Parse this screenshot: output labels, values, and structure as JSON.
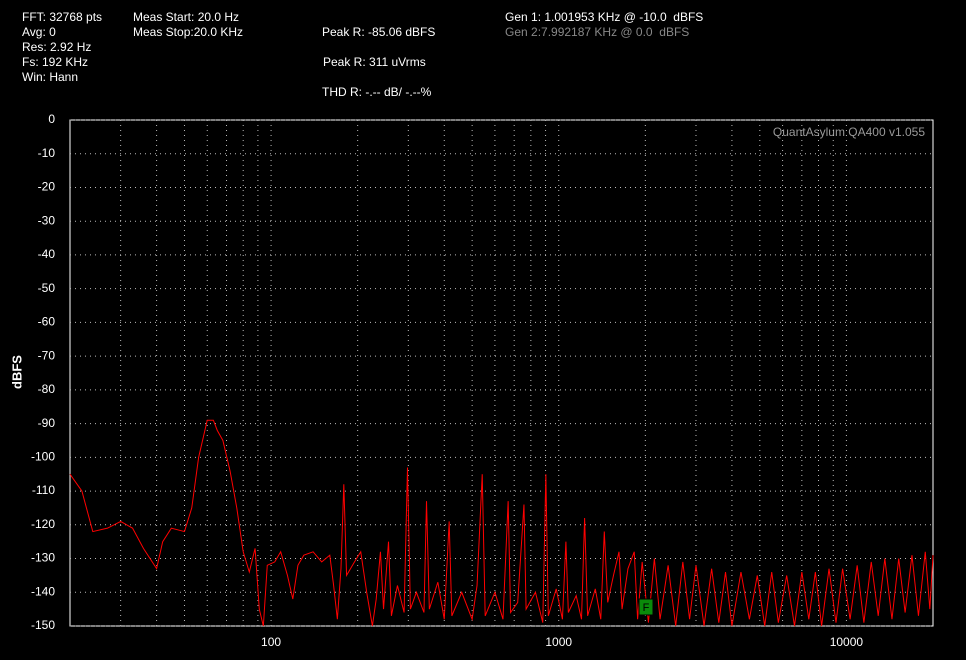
{
  "chart_data": {
    "type": "line",
    "info": {
      "fft": "FFT: 32768 pts",
      "avg": "Avg: 0",
      "res": "Res: 2.92 Hz",
      "fs": "Fs: 192 KHz",
      "win": "Win: Hann",
      "meas_start": "Meas Start: 20.0 Hz",
      "meas_stop": "Meas Stop:20.0 KHz",
      "peak_dbfs": "Peak R: -85.06 dBFS",
      "peak_vrms": "Peak R: 311 uVrms",
      "thd": "THD R: -.-- dB/ -.--%",
      "gen1": "Gen 1: 1.001953 KHz @ -10.0  dBFS",
      "gen2": "Gen 2:7.992187 KHz @ 0.0  dBFS"
    },
    "watermark": "QuantAsylum QA400 v1.055",
    "marker_label": "F",
    "ylabel": "dBFS",
    "log_x": true,
    "grid": true,
    "color": "#ff0000",
    "xlim": [
      20,
      20000
    ],
    "xticks": [
      100,
      1000,
      10000
    ],
    "minor_xticks": [
      30,
      40,
      50,
      60,
      70,
      80,
      90,
      200,
      300,
      400,
      500,
      600,
      700,
      800,
      900,
      2000,
      3000,
      4000,
      5000,
      6000,
      7000,
      8000,
      9000
    ],
    "ylim": [
      -150,
      0
    ],
    "yticks": [
      0,
      -10,
      -20,
      -30,
      -40,
      -50,
      -60,
      -70,
      -80,
      -90,
      -100,
      -110,
      -120,
      -130,
      -140,
      -150
    ],
    "x": [
      20,
      22,
      24,
      27,
      30,
      33,
      36,
      40,
      42,
      45,
      50,
      53,
      56,
      60,
      63,
      65,
      68,
      72,
      76,
      80,
      84,
      88,
      91,
      94,
      97,
      103,
      108,
      114,
      119,
      124,
      130,
      140,
      150,
      160,
      165,
      170,
      175,
      179,
      183,
      195,
      205,
      215,
      225,
      232,
      240,
      246,
      256,
      262,
      275,
      290,
      298,
      305,
      320,
      340,
      347,
      355,
      380,
      400,
      416,
      425,
      460,
      500,
      520,
      542,
      555,
      600,
      640,
      667,
      680,
      720,
      757,
      770,
      830,
      880,
      902,
      920,
      980,
      1030,
      1059,
      1080,
      1150,
      1200,
      1230,
      1260,
      1340,
      1400,
      1440,
      1480,
      1550,
      1620,
      1660,
      1740,
      1830,
      1880,
      1950,
      2050,
      2150,
      2250,
      2400,
      2550,
      2700,
      2850,
      3000,
      3200,
      3400,
      3600,
      3800,
      4000,
      4300,
      4600,
      4900,
      5200,
      5500,
      5800,
      6200,
      6600,
      7000,
      7400,
      7800,
      8200,
      8700,
      9200,
      9700,
      10300,
      10900,
      11500,
      12200,
      12900,
      13600,
      14400,
      15200,
      16000,
      16900,
      17800,
      18800,
      19500,
      20000
    ],
    "values": [
      -105,
      -110,
      -122,
      -121,
      -119,
      -121,
      -127,
      -133,
      -125,
      -121,
      -122,
      -115,
      -100,
      -89,
      -89,
      -92,
      -95,
      -104,
      -115,
      -128,
      -134,
      -127,
      -145,
      -150,
      -132,
      -131,
      -128,
      -135,
      -142,
      -132,
      -129,
      -128,
      -131,
      -129,
      -138,
      -148,
      -133,
      -108,
      -135,
      -131,
      -128,
      -140,
      -150,
      -142,
      -128,
      -145,
      -125,
      -147,
      -138,
      -146,
      -103,
      -145,
      -140,
      -146,
      -113,
      -145,
      -137,
      -148,
      -119,
      -147,
      -140,
      -148,
      -138,
      -105,
      -147,
      -140,
      -148,
      -113,
      -146,
      -143,
      -114,
      -145,
      -140,
      -149,
      -105,
      -147,
      -139,
      -148,
      -125,
      -146,
      -141,
      -148,
      -118,
      -147,
      -139,
      -148,
      -122,
      -143,
      -135,
      -128,
      -145,
      -133,
      -128,
      -148,
      -131,
      -149,
      -130,
      -148,
      -132,
      -150,
      -131,
      -148,
      -132,
      -150,
      -133,
      -149,
      -134,
      -150,
      -134,
      -148,
      -135,
      -150,
      -134,
      -149,
      -135,
      -150,
      -134,
      -148,
      -134,
      -150,
      -133,
      -149,
      -133,
      -148,
      -132,
      -149,
      -131,
      -147,
      -130,
      -148,
      -130,
      -146,
      -129,
      -147,
      -128,
      -145,
      -129
    ]
  }
}
